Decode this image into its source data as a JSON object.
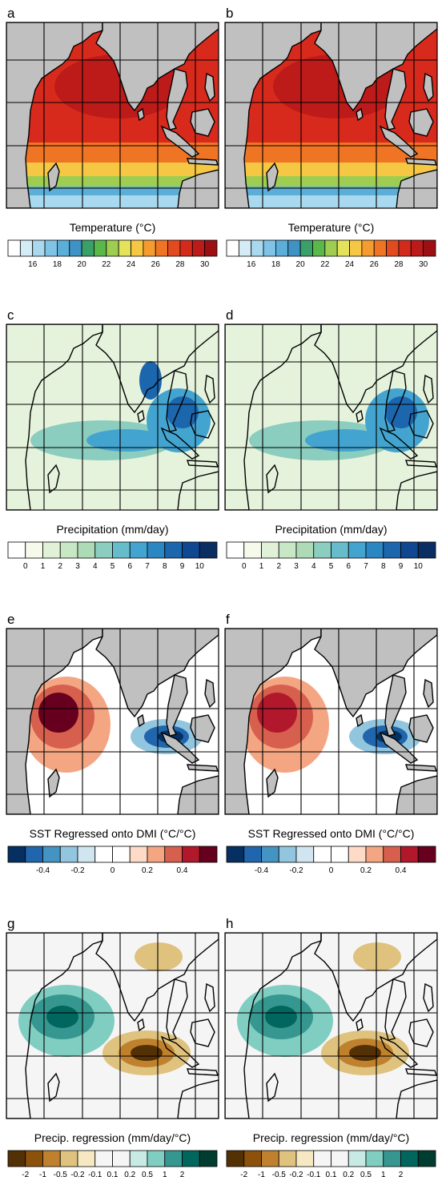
{
  "figure": {
    "rows": [
      {
        "key": "temp",
        "panels": [
          {
            "letter": "a"
          },
          {
            "letter": "b"
          }
        ],
        "colorbar": {
          "title": "Temperature (°C)",
          "colors": [
            "#ffffff",
            "#d4ecf6",
            "#a9d9ef",
            "#7fc4e6",
            "#5aaed8",
            "#3f93c4",
            "#3aa06a",
            "#5ab84a",
            "#9fcd52",
            "#e4e25a",
            "#f6c743",
            "#f59c30",
            "#ef7424",
            "#e24a20",
            "#d32a1c",
            "#bd1a1a",
            "#9c0f12"
          ],
          "ticks": [
            "16",
            "18",
            "20",
            "22",
            "24",
            "26",
            "28",
            "30"
          ],
          "tick_slots": [
            2,
            4,
            6,
            8,
            10,
            12,
            14,
            16
          ]
        }
      },
      {
        "key": "precip",
        "panels": [
          {
            "letter": "c"
          },
          {
            "letter": "d"
          }
        ],
        "colorbar": {
          "title": "Precipitation (mm/day)",
          "colors": [
            "#ffffff",
            "#f5faeb",
            "#e1f1d7",
            "#c8e7c4",
            "#acdbb5",
            "#8bcdbe",
            "#66bccb",
            "#44a4d0",
            "#2b87c2",
            "#1b66ad",
            "#0f4790",
            "#0a2e62"
          ],
          "ticks": [
            "0",
            "1",
            "2",
            "3",
            "4",
            "5",
            "6",
            "7",
            "8",
            "9",
            "10"
          ],
          "tick_slots": [
            1,
            2,
            3,
            4,
            5,
            6,
            7,
            8,
            9,
            10,
            11
          ]
        }
      },
      {
        "key": "sst_reg",
        "panels": [
          {
            "letter": "e"
          },
          {
            "letter": "f"
          }
        ],
        "colorbar": {
          "title": "SST Regressed onto DMI (°C/°C)",
          "colors": [
            "#053061",
            "#2166ac",
            "#4393c3",
            "#92c5de",
            "#d1e5f0",
            "#ffffff",
            "#ffffff",
            "#fddbc7",
            "#f4a582",
            "#d6604d",
            "#b2182b",
            "#67001f"
          ],
          "ticks": [
            "-0.4",
            "-0.2",
            "0",
            "0.2",
            "0.4"
          ],
          "tick_slots": [
            2,
            4,
            6,
            8,
            10
          ]
        }
      },
      {
        "key": "precip_reg",
        "panels": [
          {
            "letter": "g"
          },
          {
            "letter": "h"
          }
        ],
        "colorbar": {
          "title": "Precip. regression (mm/day/°C)",
          "colors": [
            "#543005",
            "#8c510a",
            "#bf812d",
            "#dfc27d",
            "#f6e8c3",
            "#f5f5f5",
            "#f5f5f5",
            "#c7eae5",
            "#80cdc1",
            "#35978f",
            "#01665e",
            "#003c30"
          ],
          "ticks": [
            "-2",
            "-1",
            "-0.5",
            "-0.2",
            "-0.1",
            "0.1",
            "0.2",
            "0.5",
            "1",
            "2"
          ],
          "tick_slots": [
            1,
            2,
            3,
            4,
            5,
            6,
            7,
            8,
            9,
            10
          ]
        }
      }
    ],
    "colors": {
      "land": "#c0c0c0",
      "grid": "#000000",
      "coast": "#000000"
    }
  }
}
